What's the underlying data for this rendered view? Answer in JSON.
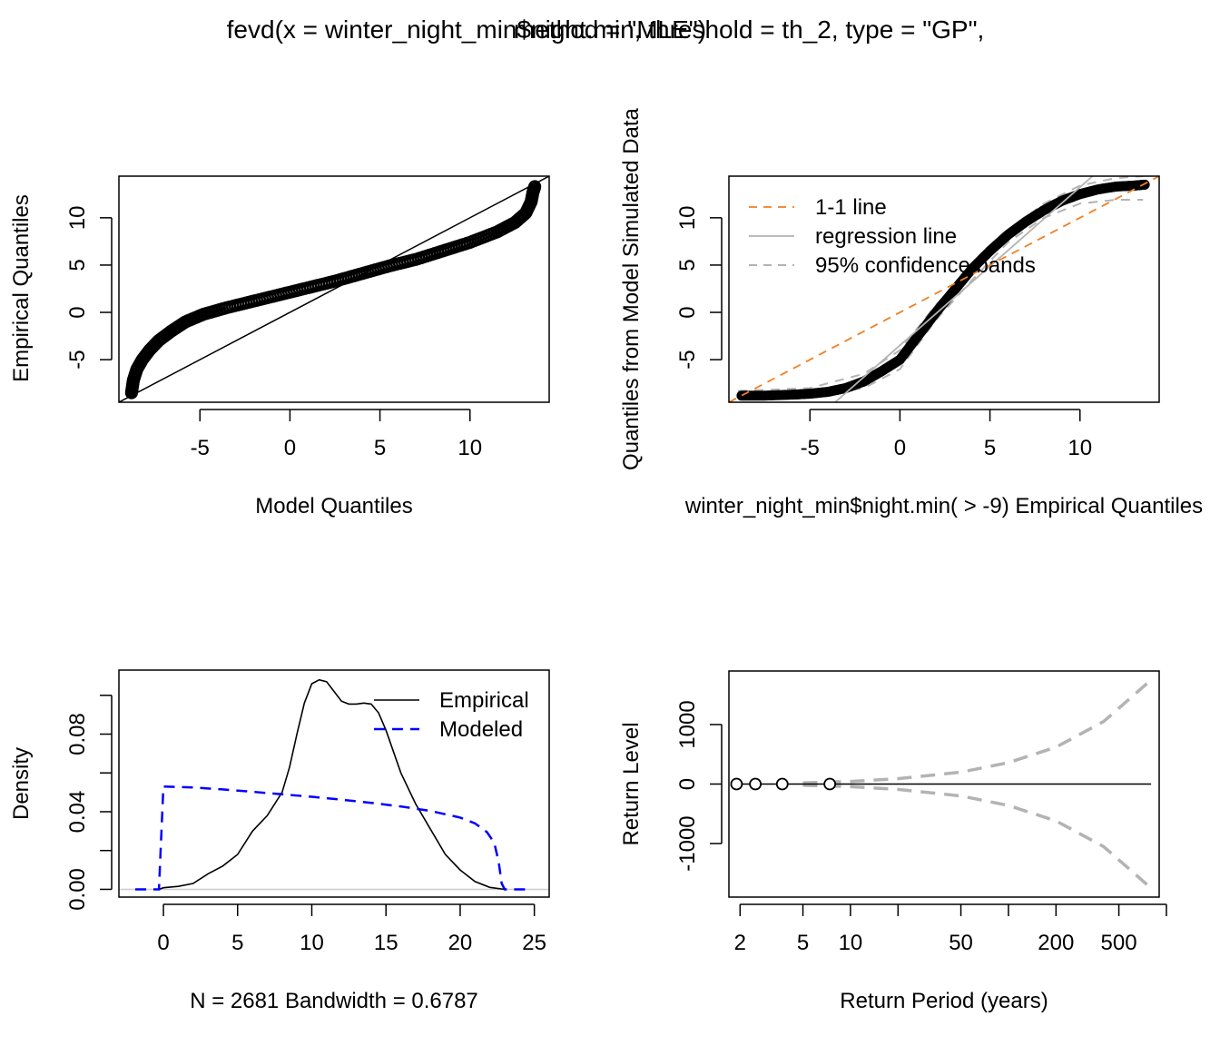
{
  "figure": {
    "title_part1": "fevd(x = winter_night_min$night.min, threshold = th_2, type = \"GP\",",
    "title_part2": "method = \"MLE\")"
  },
  "chart_data": [
    {
      "id": "qq-model",
      "type": "scatter",
      "xlabel": "Model Quantiles",
      "ylabel": "Empirical Quantiles",
      "xlim": [
        -9.5,
        14.4
      ],
      "ylim": [
        -9.5,
        14.4
      ],
      "xticks": [
        -5,
        0,
        5,
        10
      ],
      "yticks": [
        -5,
        0,
        5,
        10
      ],
      "series": [
        {
          "values": [
            [
              -8.8,
              -8.5
            ],
            [
              -8.7,
              -7.2
            ],
            [
              -8.5,
              -6.0
            ],
            [
              -8.2,
              -5.0
            ],
            [
              -7.8,
              -4.0
            ],
            [
              -7.3,
              -3.0
            ],
            [
              -6.6,
              -2.0
            ],
            [
              -5.8,
              -1.0
            ],
            [
              -4.8,
              -0.2
            ],
            [
              -3.5,
              0.5
            ],
            [
              -2.0,
              1.2
            ],
            [
              -0.5,
              1.9
            ],
            [
              1.0,
              2.6
            ],
            [
              2.5,
              3.3
            ],
            [
              4.0,
              4.1
            ],
            [
              5.5,
              4.9
            ],
            [
              7.0,
              5.6
            ],
            [
              8.5,
              6.5
            ],
            [
              10.0,
              7.4
            ],
            [
              11.5,
              8.5
            ],
            [
              12.5,
              9.5
            ],
            [
              13.1,
              10.5
            ],
            [
              13.4,
              11.7
            ],
            [
              13.5,
              12.7
            ],
            [
              13.6,
              13.3
            ]
          ]
        },
        {
          "name": "1-1 line",
          "values": [
            [
              -9.5,
              -9.5
            ],
            [
              14.4,
              14.4
            ]
          ]
        }
      ]
    },
    {
      "id": "qq-simulated",
      "type": "scatter",
      "xlabel": "winter_night_min$night.min( > -9) Empirical Quantiles",
      "ylabel": "Quantiles from Model Simulated Data",
      "xlim": [
        -9.5,
        14.4
      ],
      "ylim": [
        -9.5,
        14.4
      ],
      "xticks": [
        -5,
        0,
        5,
        10
      ],
      "yticks": [
        -5,
        0,
        5,
        10
      ],
      "legend": {
        "position": "top-left",
        "entries": [
          "1-1 line",
          "regression line",
          "95% confidence bands"
        ]
      },
      "series": [
        {
          "name": "data",
          "values": [
            [
              -8.8,
              -8.8
            ],
            [
              -7.5,
              -8.8
            ],
            [
              -6,
              -8.7
            ],
            [
              -5,
              -8.6
            ],
            [
              -4,
              -8.4
            ],
            [
              -3,
              -8.0
            ],
            [
              -2,
              -7.3
            ],
            [
              -1,
              -6.2
            ],
            [
              0,
              -5.0
            ],
            [
              1,
              -2.5
            ],
            [
              2,
              0.0
            ],
            [
              3,
              2.3
            ],
            [
              4,
              4.6
            ],
            [
              5,
              6.5
            ],
            [
              6,
              8.2
            ],
            [
              7,
              9.6
            ],
            [
              8,
              10.8
            ],
            [
              9,
              11.8
            ],
            [
              10,
              12.5
            ],
            [
              11,
              13.0
            ],
            [
              12,
              13.3
            ],
            [
              13,
              13.4
            ],
            [
              13.6,
              13.5
            ]
          ]
        },
        {
          "name": "1-1 line",
          "values": [
            [
              -9.5,
              -9.5
            ],
            [
              14.4,
              14.4
            ]
          ]
        },
        {
          "name": "regression line",
          "values": [
            [
              -3.6,
              -9.5
            ],
            [
              10.7,
              14.4
            ]
          ]
        },
        {
          "name": "95% confidence bands upper",
          "values": [
            [
              -9,
              -8.3
            ],
            [
              -5,
              -8.0
            ],
            [
              -2,
              -6.5
            ],
            [
              0,
              -4.0
            ],
            [
              2,
              0.8
            ],
            [
              4,
              4.8
            ],
            [
              6,
              8.6
            ],
            [
              8,
              11.5
            ],
            [
              10,
              13.4
            ],
            [
              12,
              14.2
            ],
            [
              13.5,
              14.4
            ]
          ]
        },
        {
          "name": "95% confidence bands lower",
          "values": [
            [
              -9,
              -8.9
            ],
            [
              -5,
              -8.8
            ],
            [
              -2,
              -8.0
            ],
            [
              0,
              -6.0
            ],
            [
              2,
              -0.8
            ],
            [
              4,
              3.4
            ],
            [
              6,
              7.4
            ],
            [
              8,
              10.0
            ],
            [
              10,
              11.5
            ],
            [
              12,
              11.9
            ],
            [
              13.5,
              11.9
            ]
          ]
        }
      ]
    },
    {
      "id": "density",
      "type": "line",
      "xlabel": "N = 2681   Bandwidth = 0.6787",
      "ylabel": "Density",
      "xlim": [
        -3,
        26
      ],
      "ylim": [
        -0.004,
        0.113
      ],
      "xticks": [
        0,
        5,
        10,
        15,
        20,
        25
      ],
      "yticks": [
        0.0,
        0.02,
        0.04,
        0.06,
        0.08,
        0.1
      ],
      "ytick_labels": [
        "0.00",
        "",
        "0.04",
        "",
        "0.08",
        ""
      ],
      "legend": {
        "position": "top-right",
        "entries": [
          "Empirical",
          "Modeled"
        ]
      },
      "series": [
        {
          "name": "Empirical",
          "values": [
            [
              -0.3,
              0.0
            ],
            [
              0,
              0.0008
            ],
            [
              1,
              0.0015
            ],
            [
              2,
              0.003
            ],
            [
              3,
              0.008
            ],
            [
              4,
              0.012
            ],
            [
              5,
              0.018
            ],
            [
              6,
              0.03
            ],
            [
              7,
              0.038
            ],
            [
              8,
              0.05
            ],
            [
              8.5,
              0.063
            ],
            [
              9,
              0.08
            ],
            [
              9.5,
              0.096
            ],
            [
              10,
              0.106
            ],
            [
              10.5,
              0.108
            ],
            [
              11,
              0.107
            ],
            [
              11.5,
              0.102
            ],
            [
              12,
              0.097
            ],
            [
              12.5,
              0.0955
            ],
            [
              13,
              0.0955
            ],
            [
              13.5,
              0.096
            ],
            [
              14,
              0.0955
            ],
            [
              14.5,
              0.091
            ],
            [
              15,
              0.082
            ],
            [
              16,
              0.06
            ],
            [
              17,
              0.044
            ],
            [
              18,
              0.031
            ],
            [
              19,
              0.018
            ],
            [
              20,
              0.01
            ],
            [
              21,
              0.004
            ],
            [
              22,
              0.001
            ],
            [
              23,
              0.0
            ]
          ]
        },
        {
          "name": "Modeled",
          "values": [
            [
              -1.9,
              0.0
            ],
            [
              -0.3,
              0.0
            ],
            [
              0,
              0.053
            ],
            [
              2,
              0.0525
            ],
            [
              4,
              0.0515
            ],
            [
              6,
              0.0503
            ],
            [
              8,
              0.049
            ],
            [
              10,
              0.0477
            ],
            [
              12,
              0.0462
            ],
            [
              14,
              0.0446
            ],
            [
              16,
              0.0427
            ],
            [
              18,
              0.0404
            ],
            [
              20,
              0.037
            ],
            [
              21,
              0.034
            ],
            [
              21.8,
              0.0295
            ],
            [
              22.3,
              0.024
            ],
            [
              22.6,
              0.014
            ],
            [
              22.8,
              0.003
            ],
            [
              23.0,
              0.0
            ],
            [
              24.7,
              0.0
            ]
          ]
        }
      ]
    },
    {
      "id": "return-level",
      "type": "line",
      "xlabel": "Return Period (years)",
      "ylabel": "Return Level",
      "xscale": "log",
      "xlim": [
        1.7,
        900
      ],
      "ylim": [
        -1900,
        1900
      ],
      "xticks": [
        2,
        5,
        10,
        20,
        50,
        100,
        200,
        500,
        1000
      ],
      "xtick_labels": [
        "2",
        "5",
        "10",
        "",
        "50",
        "",
        "200",
        "500",
        ""
      ],
      "yticks": [
        -1000,
        0,
        1000
      ],
      "series": [
        {
          "name": "estimate",
          "values": [
            [
              1.9,
              0
            ],
            [
              800,
              0
            ]
          ]
        },
        {
          "name": "upper",
          "values": [
            [
              5,
              20
            ],
            [
              10,
              45
            ],
            [
              20,
              90
            ],
            [
              50,
              200
            ],
            [
              100,
              360
            ],
            [
              200,
              620
            ],
            [
              400,
              1050
            ],
            [
              800,
              1750
            ]
          ]
        },
        {
          "name": "lower",
          "values": [
            [
              5,
              -20
            ],
            [
              10,
              -45
            ],
            [
              20,
              -90
            ],
            [
              50,
              -200
            ],
            [
              100,
              -360
            ],
            [
              200,
              -620
            ],
            [
              400,
              -1050
            ],
            [
              800,
              -1750
            ]
          ]
        },
        {
          "name": "points",
          "values": [
            [
              1.9,
              0
            ],
            [
              2.5,
              0
            ],
            [
              3.7,
              0
            ],
            [
              7.4,
              0
            ]
          ]
        }
      ]
    }
  ],
  "colors": {
    "axis": "#000000",
    "orange": "#f07f24",
    "gray": "#b3b3b3",
    "blue": "#0000ff",
    "zero_line": "#cccccc"
  }
}
